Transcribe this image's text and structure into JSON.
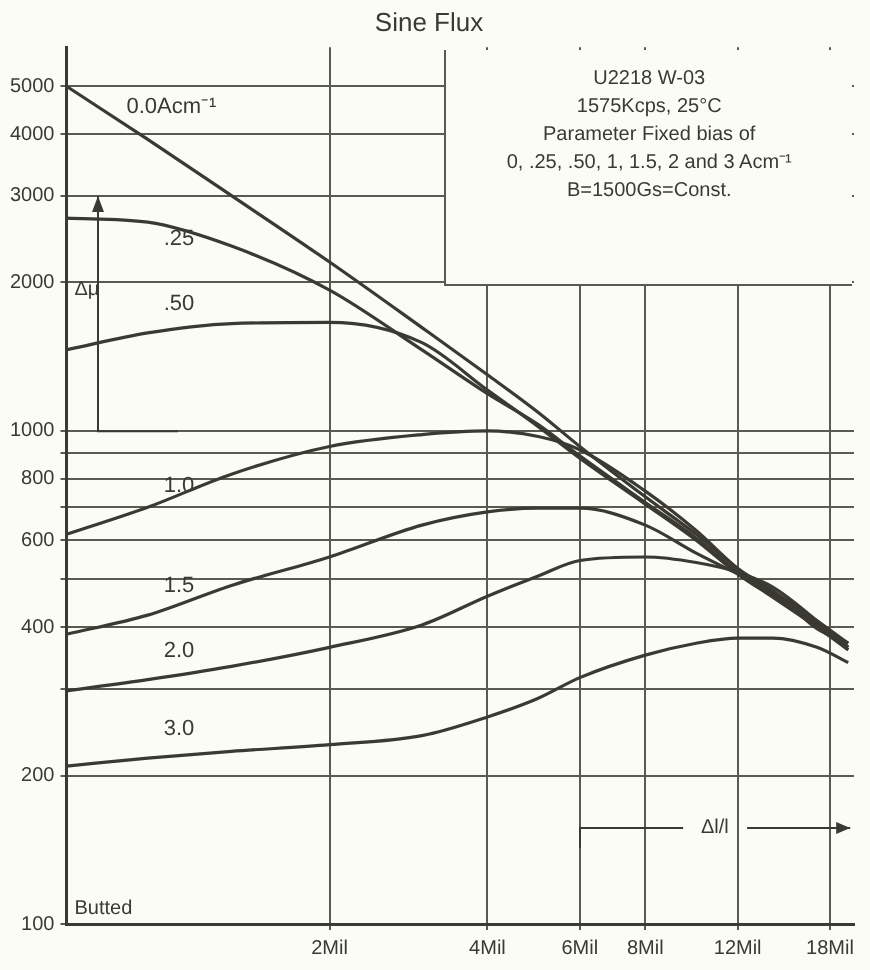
{
  "chart_data": {
    "type": "line",
    "title": "Sine Flux",
    "x": [
      0.63,
      0.9,
      1.3,
      2,
      3,
      4,
      5,
      6,
      8,
      10,
      12,
      14,
      17,
      19.5
    ],
    "series": [
      {
        "name": "0.0Acm⁻¹",
        "color": "#3a3a32",
        "values": [
          5000,
          3900,
          3000,
          2200,
          1620,
          1300,
          1090,
          930,
          735,
          617,
          526,
          474,
          412,
          371
        ]
      },
      {
        "name": ".25",
        "color": "#3a3a32",
        "values": [
          2700,
          2650,
          2370,
          1930,
          1460,
          1190,
          1030,
          890,
          716,
          606,
          517,
          465,
          405,
          364
        ]
      },
      {
        "name": ".50",
        "color": "#3a3a32",
        "values": [
          1460,
          1580,
          1650,
          1660,
          1510,
          1210,
          1020,
          880,
          710,
          600,
          513,
          460,
          400,
          360
        ]
      },
      {
        "name": "1.0",
        "color": "#3a3a32",
        "values": [
          617,
          700,
          817,
          930,
          983,
          1000,
          974,
          916,
          755,
          628,
          526,
          470,
          405,
          360
        ]
      },
      {
        "name": "1.5",
        "color": "#3a3a32",
        "values": [
          387,
          423,
          486,
          555,
          644,
          685,
          697,
          697,
          644,
          565,
          513,
          474,
          397,
          371
        ]
      },
      {
        "name": "2.0",
        "color": "#3a3a32",
        "values": [
          297,
          313,
          333,
          364,
          404,
          462,
          508,
          546,
          555,
          541,
          517,
          482,
          412,
          364
        ]
      },
      {
        "name": "3.0",
        "color": "#3a3a32",
        "values": [
          209,
          217,
          224,
          231,
          241,
          263,
          287,
          316,
          351,
          371,
          380,
          380,
          364,
          339
        ]
      }
    ],
    "log": "xy",
    "xlim": [
      0.63,
      20
    ],
    "ylim": [
      100,
      6000
    ],
    "xticks": [
      {
        "value": 2,
        "label": "2Mil"
      },
      {
        "value": 4,
        "label": "4Mil"
      },
      {
        "value": 6,
        "label": "6Mil"
      },
      {
        "value": 8,
        "label": "8Mil"
      },
      {
        "value": 12,
        "label": "12Mil"
      },
      {
        "value": 18,
        "label": "18Mil"
      }
    ],
    "yticks": [
      100,
      200,
      {
        "value": 300,
        "label": null
      },
      400,
      {
        "value": 500,
        "label": null
      },
      600,
      {
        "value": 700,
        "label": null
      },
      800,
      {
        "value": 900,
        "label": null
      },
      1000,
      2000,
      3000,
      4000,
      5000
    ],
    "grid": true,
    "legend": false,
    "marker": "none",
    "line_style": "solid",
    "annotations": [
      "U2218      W-03",
      "1575Kcps, 25°C",
      "Parameter Fixed bias of",
      "0, .25, .50, 1, 1.5, 2 and 3 Acm⁻¹",
      "B=1500Gs=Const.",
      "Δμ",
      "Δl/l",
      "Butted"
    ]
  }
}
